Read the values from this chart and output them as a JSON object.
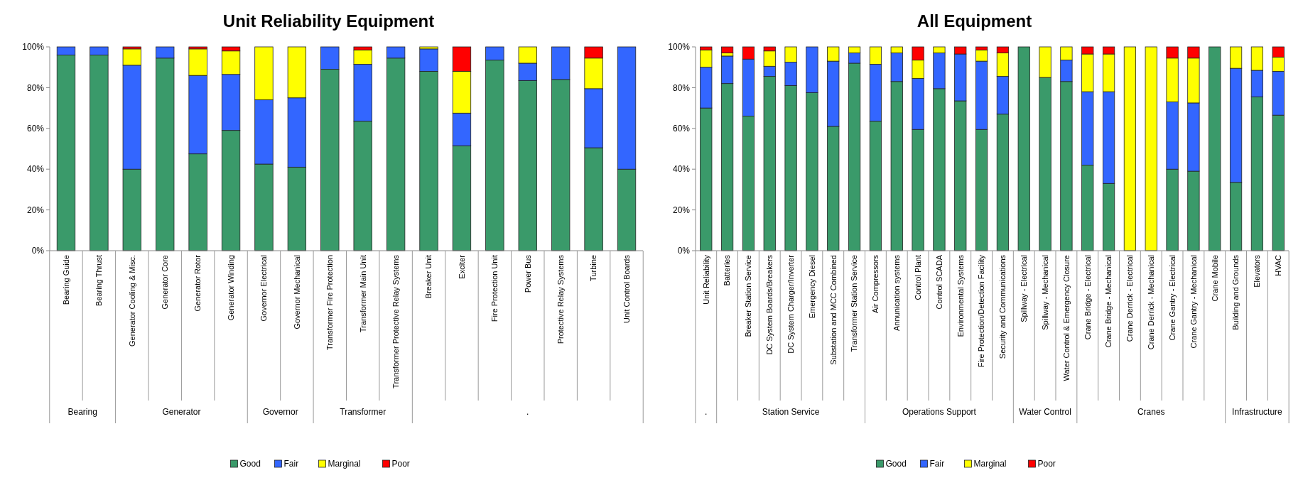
{
  "chart_data": [
    {
      "type": "bar",
      "stacked": true,
      "title": "Unit Reliability Equipment",
      "categories": [
        "Bearing Guide",
        "Bearing Thrust",
        "Generator Cooling & Misc.",
        "Generator Core",
        "Generator Rotor",
        "Generator Winding",
        "Governor Electrical",
        "Governor Mechanical",
        "Transformer Fire Protection",
        "Transformer Main Unit",
        "Transformer Protective Relay Systems",
        "Breaker Unit",
        "Exciter",
        "Fire Protection Unit",
        "Power Bus",
        "Protective Relay Systems",
        "Turbine",
        "Unit Control Boards"
      ],
      "series": [
        {
          "name": "Good",
          "color": "#3a9a6a",
          "values": [
            96,
            96,
            40,
            94.5,
            47.5,
            59,
            42.5,
            41,
            89,
            63.5,
            94.5,
            88,
            51.5,
            93.5,
            83.5,
            84,
            50.5,
            40
          ]
        },
        {
          "name": "Fair",
          "color": "#3366ff",
          "values": [
            4,
            4,
            51,
            5.5,
            38.5,
            27.5,
            31.5,
            34,
            11,
            28,
            5.5,
            11,
            16,
            6.5,
            8.5,
            16,
            29,
            60
          ]
        },
        {
          "name": "Marginal",
          "color": "#ffff00",
          "values": [
            0,
            0,
            8,
            0,
            13,
            11.5,
            26,
            25,
            0,
            7,
            0,
            1,
            20.5,
            0,
            8,
            0,
            15,
            0
          ]
        },
        {
          "name": "Poor",
          "color": "#ff0000",
          "values": [
            0,
            0,
            1,
            0,
            1,
            2,
            0,
            0,
            0,
            1.5,
            0,
            0,
            12,
            0,
            0,
            0,
            5.5,
            0
          ]
        }
      ],
      "ylim": [
        0,
        100
      ],
      "yticks": [
        {
          "value": 0,
          "label": "0%"
        },
        {
          "value": 20,
          "label": "20%"
        },
        {
          "value": 40,
          "label": "40%"
        },
        {
          "value": 60,
          "label": "60%"
        },
        {
          "value": 80,
          "label": "80%"
        },
        {
          "value": 100,
          "label": "100%"
        }
      ],
      "annotations": [
        "Bearing",
        "Generator",
        "Governor",
        "Transformer",
        "."
      ],
      "legend": "bottom",
      "grid": false
    },
    {
      "type": "bar",
      "stacked": true,
      "title": "All Equipment",
      "categories": [
        "Unit Reliability",
        "Batteries",
        "Breaker Station Service",
        "DC System Boards/Breakers",
        "DC System Charger/Inverter",
        "Emergency Diesel",
        "Substation and MCC Combined",
        "Transformer Station Service",
        "Air Compressors",
        "Annunication systems",
        "Control Plant",
        "Control SCADA",
        "Environmental Systems",
        "Fire Protection/Detection Facility",
        "Security and Communications",
        "Spillway - Electrical",
        "Spillway - Mechanical",
        "Water Control & Emergency Closure",
        "Crane Bridge - Electrical",
        "Crane Bridge - Mechanical",
        "Crane Derrick - Electrical",
        "Crane Derrick - Mechanical",
        "Crane Gantry - Electrical",
        "Crane Gantry - Mechanical",
        "Crane Mobile",
        "Building and Grounds",
        "Elevators",
        "HVAC"
      ],
      "series": [
        {
          "name": "Good",
          "color": "#3a9a6a",
          "values": [
            70,
            82,
            66,
            85.5,
            81,
            77.5,
            61,
            92,
            63.5,
            83,
            59.5,
            79.5,
            73.5,
            59.5,
            67,
            100,
            85,
            83,
            42,
            33,
            0,
            0,
            40,
            39,
            100,
            33.5,
            75.5,
            66.5
          ]
        },
        {
          "name": "Fair",
          "color": "#3366ff",
          "values": [
            20,
            13.5,
            28,
            5,
            11.5,
            22.5,
            32,
            5,
            28,
            14,
            25,
            17.5,
            23,
            33.5,
            18.5,
            0,
            0,
            10.5,
            36,
            45,
            0,
            0,
            33,
            33.5,
            0,
            56,
            13,
            21.5
          ]
        },
        {
          "name": "Marginal",
          "color": "#ffff00",
          "values": [
            8.5,
            1.5,
            0,
            7.5,
            7.5,
            0,
            7,
            3,
            8.5,
            3,
            9,
            3,
            0,
            5.5,
            11.5,
            0,
            15,
            6.5,
            18.5,
            18.5,
            100,
            100,
            21.5,
            22,
            0,
            10.5,
            11.5,
            7
          ]
        },
        {
          "name": "Poor",
          "color": "#ff0000",
          "values": [
            1.5,
            3,
            6,
            2,
            0,
            0,
            0,
            0,
            0,
            0,
            6.5,
            0,
            3.5,
            1.5,
            3,
            0,
            0,
            0,
            3.5,
            3.5,
            0,
            0,
            5.5,
            5.5,
            0,
            0,
            0,
            5
          ]
        }
      ],
      "ylim": [
        0,
        100
      ],
      "yticks": [
        {
          "value": 0,
          "label": "0%"
        },
        {
          "value": 20,
          "label": "20%"
        },
        {
          "value": 40,
          "label": "40%"
        },
        {
          "value": 60,
          "label": "60%"
        },
        {
          "value": 80,
          "label": "80%"
        },
        {
          "value": 100,
          "label": "100%"
        }
      ],
      "annotations": [
        ".",
        "Station Service",
        "Operations Support",
        "Water Control",
        "Cranes",
        "Infrastructure"
      ],
      "legend": "bottom",
      "grid": false
    }
  ]
}
